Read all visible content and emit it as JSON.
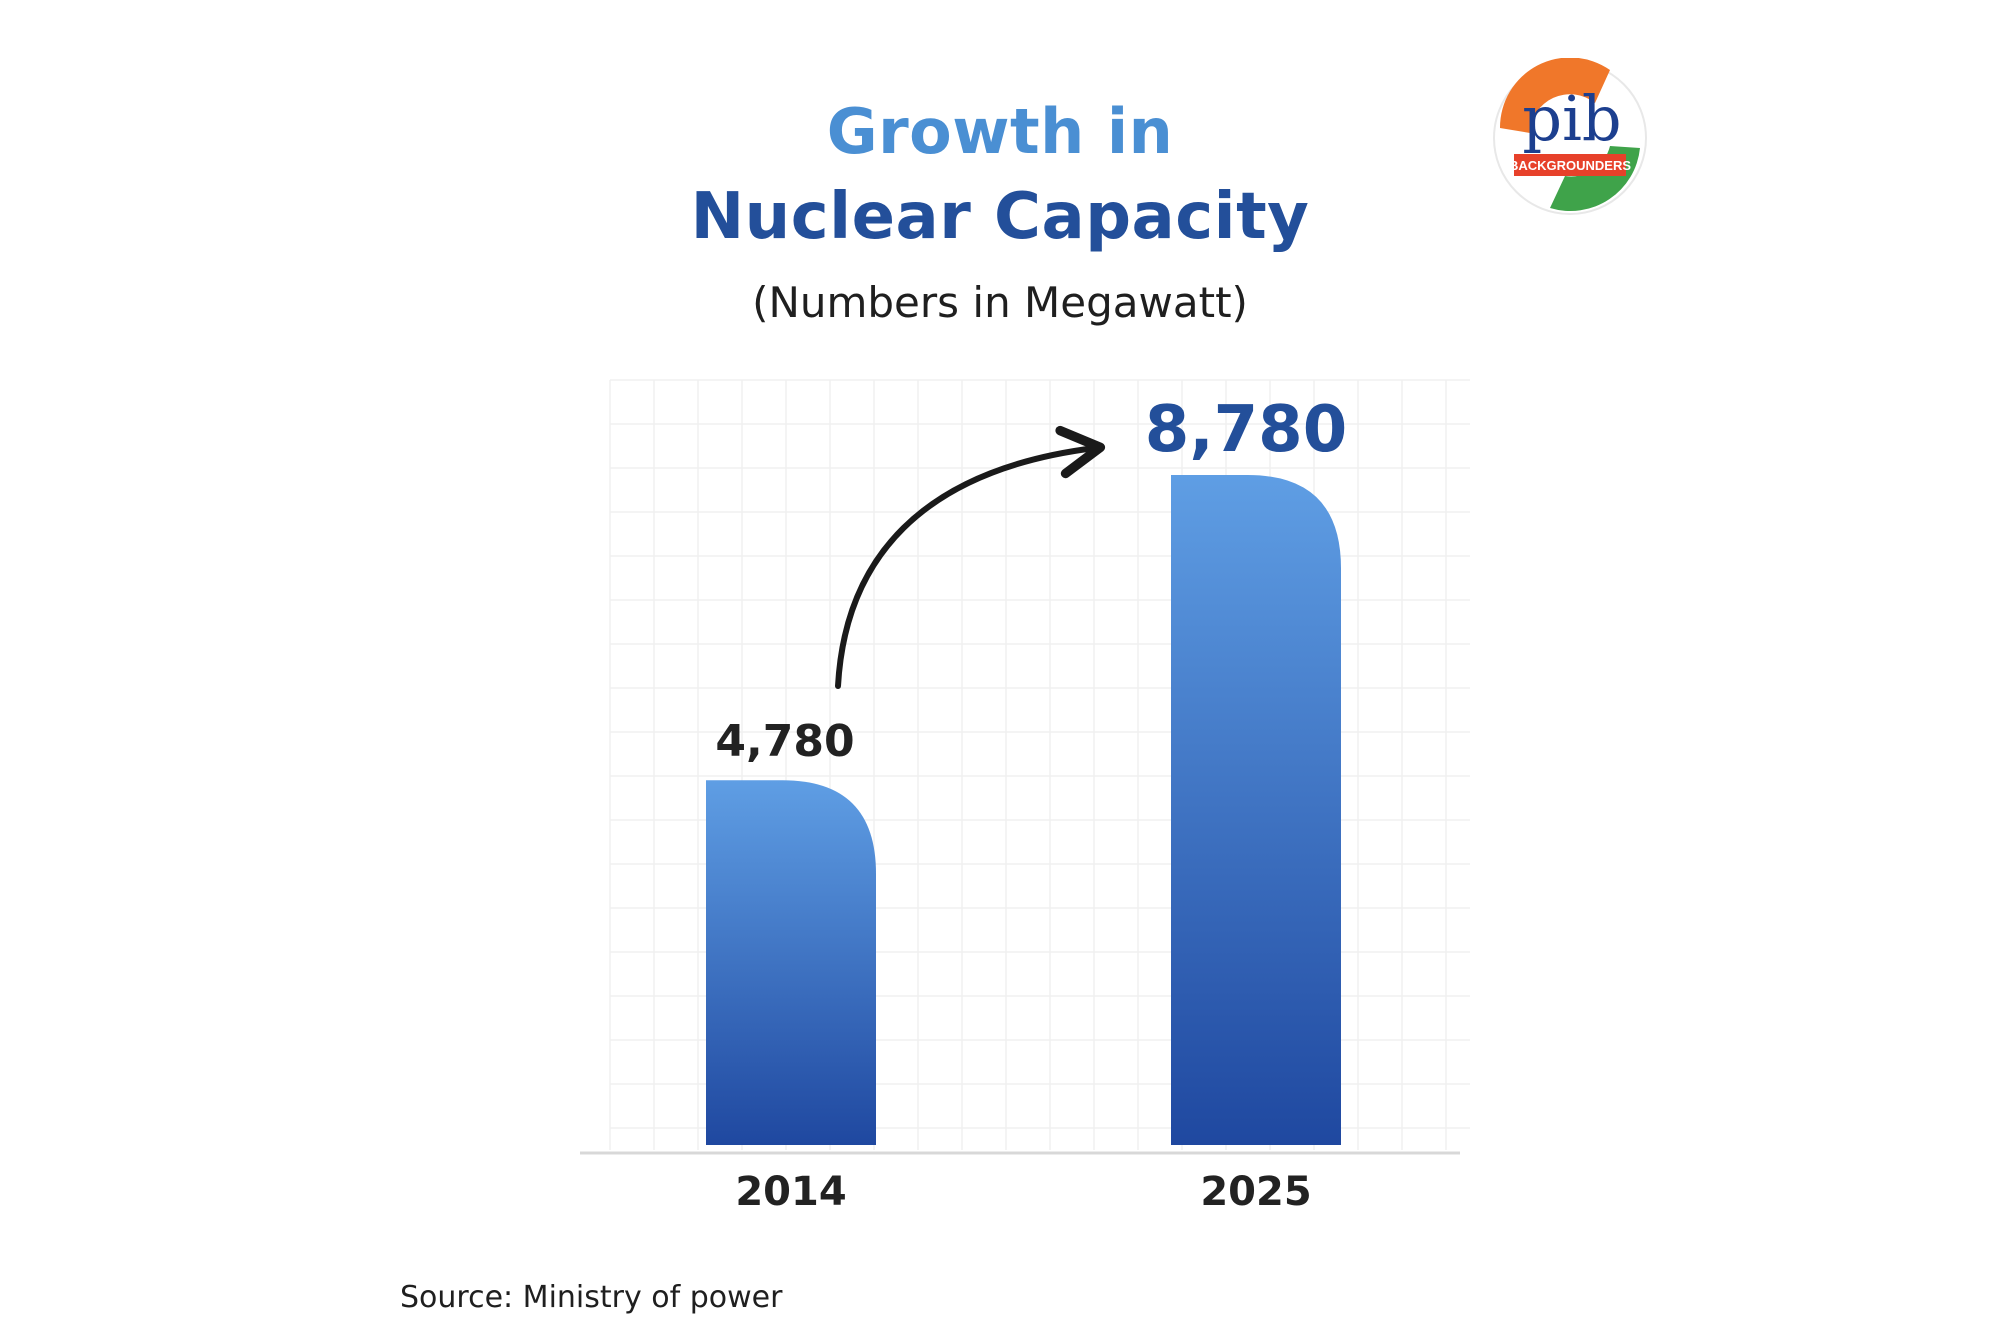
{
  "title_line1": "Growth in",
  "title_line2": "Nuclear Capacity",
  "subtitle": "(Numbers in Megawatt)",
  "source": "Source: Ministry of power",
  "logo": {
    "text": "pib",
    "banner": "BACKGROUNDERS"
  },
  "colors": {
    "bar_top": "#5f9ee4",
    "bar_bottom": "#1f48a0",
    "title_light": "#4a8fd3",
    "title_dark": "#234f9a",
    "arrow": "#1a1a1a"
  },
  "chart_data": {
    "type": "bar",
    "categories": [
      "2014",
      "2025"
    ],
    "values": [
      4780,
      8780
    ],
    "value_labels": [
      "4,780",
      "8,780"
    ],
    "title": "Growth in Nuclear Capacity",
    "subtitle": "(Numbers in Megawatt)",
    "xlabel": "",
    "ylabel": "",
    "ylim": [
      0,
      8780
    ],
    "grid": true,
    "annotation": "arrow from 2014 to 2025"
  }
}
